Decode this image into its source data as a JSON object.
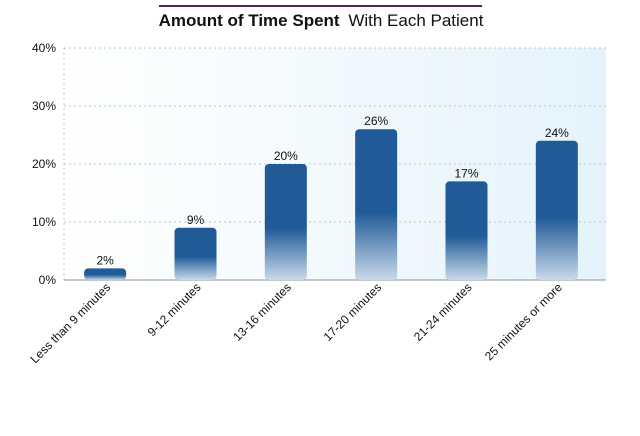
{
  "chart_data": {
    "type": "bar",
    "title_bold": "Amount of Time Spent",
    "title_rest": "With Each Patient",
    "categories": [
      "Less than 9 minutes",
      "9-12 minutes",
      "13-16 minutes",
      "17-20 minutes",
      "21-24 minutes",
      "25 minutes or more"
    ],
    "values": [
      2,
      9,
      20,
      26,
      17,
      24
    ],
    "value_labels": [
      "2%",
      "9%",
      "20%",
      "26%",
      "17%",
      "24%"
    ],
    "yticks": [
      0,
      10,
      20,
      30,
      40
    ],
    "ytick_labels": [
      "0%",
      "10%",
      "20%",
      "30%",
      "40%"
    ],
    "ylim": [
      0,
      40
    ],
    "grid": true,
    "xlabel": "",
    "ylabel": ""
  },
  "colors": {
    "bar_top": "#205a97",
    "bar_bottom": "#c9d9ea",
    "plot_bg_left": "#ffffff",
    "plot_bg_right": "#e4f3fb",
    "gridline": "#b9c4cc",
    "title_rule": "#5a1f5c",
    "text": "#111111"
  }
}
